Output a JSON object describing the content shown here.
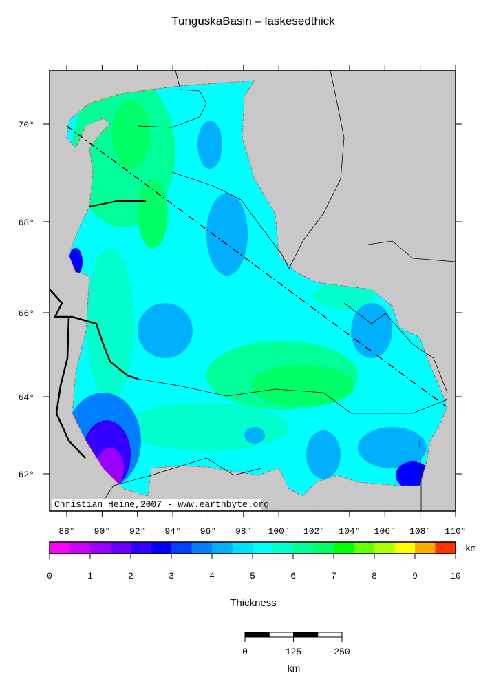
{
  "title": "TunguskaBasin – laskesedthick",
  "map": {
    "lat_ticks": [
      {
        "value": 62,
        "label": "62°"
      },
      {
        "value": 64,
        "label": "64°"
      },
      {
        "value": 66,
        "label": "66°"
      },
      {
        "value": 68,
        "label": "68°"
      },
      {
        "value": 70,
        "label": "70°"
      }
    ],
    "lon_ticks": [
      {
        "value": 88,
        "label": "88°"
      },
      {
        "value": 90,
        "label": "90°"
      },
      {
        "value": 92,
        "label": "92°"
      },
      {
        "value": 94,
        "label": "94°"
      },
      {
        "value": 96,
        "label": "96°"
      },
      {
        "value": 98,
        "label": "98°"
      },
      {
        "value": 100,
        "label": "100°"
      },
      {
        "value": 102,
        "label": "102°"
      },
      {
        "value": 104,
        "label": "104°"
      },
      {
        "value": 106,
        "label": "106°"
      },
      {
        "value": 108,
        "label": "108°"
      },
      {
        "value": 110,
        "label": "110°"
      }
    ],
    "credit": "Christian Heine,2007 - www.earthbyte.org"
  },
  "colorbar": {
    "range": [
      0,
      10
    ],
    "ticks": [
      0,
      1,
      2,
      3,
      4,
      5,
      6,
      7,
      8,
      9,
      10
    ],
    "unit": "km",
    "label": "Thickness",
    "colors": [
      "#ff00ff",
      "#cc00ff",
      "#9900ff",
      "#6a00ff",
      "#3300ff",
      "#0000ff",
      "#0040ff",
      "#0080ff",
      "#00b0ff",
      "#00e0ff",
      "#00ffff",
      "#00ffcc",
      "#00ff99",
      "#00ff66",
      "#00ff00",
      "#66ff00",
      "#aaff00",
      "#ffff00",
      "#ffaa00",
      "#ff3300"
    ]
  },
  "scalebar": {
    "range": [
      0,
      250
    ],
    "ticks": [
      0,
      125,
      250
    ],
    "unit": "km"
  }
}
